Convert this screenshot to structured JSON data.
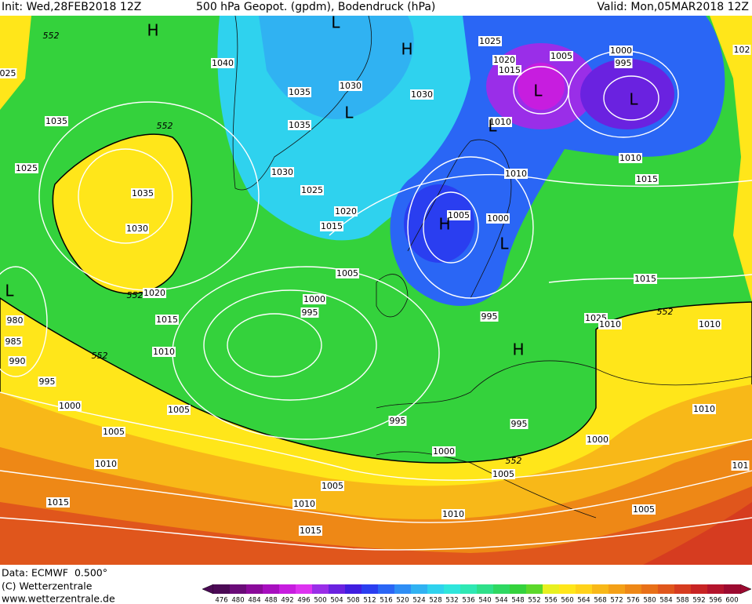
{
  "header": {
    "init": "Init: Wed,28FEB2018 12Z",
    "title": "500 hPa Geopot. (gpdm), Bodendruck (hPa)",
    "valid": "Valid: Mon,05MAR2018 12Z"
  },
  "pressure_labels": [
    "1040",
    "025",
    "1035",
    "1025",
    "1035",
    "1030",
    "1035",
    "1030",
    "1025",
    "1020",
    "1015",
    "1005",
    "1000",
    "995",
    "1010",
    "1030",
    "1025",
    "1035",
    "1030",
    "1020",
    "1015",
    "1010",
    "1015",
    "1010",
    "1005",
    "1000",
    "1005",
    "1015",
    "1020",
    "1000",
    "995",
    "1015",
    "980",
    "995",
    "1025",
    "1010",
    "1010",
    "985",
    "1010",
    "990",
    "995",
    "1000",
    "1005",
    "1010",
    "995",
    "995",
    "1005",
    "1000",
    "1000",
    "1010",
    "1005",
    "1005",
    "1015",
    "1010",
    "1010",
    "1005",
    "1015",
    "101",
    "102"
  ],
  "geopotential_labels": [
    "552",
    "552",
    "552",
    "552",
    "552",
    "552"
  ],
  "centers": [
    "H",
    "L",
    "H",
    "L",
    "L",
    "L",
    "L",
    "H",
    "L",
    "L",
    "H"
  ],
  "footer": {
    "data": "Data: ECMWF  0.500°",
    "copyright": "(C) Wetterzentrale",
    "url": "www.wetterzentrale.de"
  },
  "colorbar": {
    "labels": [
      "476",
      "480",
      "484",
      "488",
      "492",
      "496",
      "500",
      "504",
      "508",
      "512",
      "516",
      "520",
      "524",
      "528",
      "532",
      "536",
      "540",
      "544",
      "548",
      "552",
      "556",
      "560",
      "564",
      "568",
      "572",
      "576",
      "580",
      "584",
      "588",
      "592",
      "596",
      "600"
    ],
    "colors": [
      "#4b0a55",
      "#6a0b78",
      "#8a0a9a",
      "#a70fbf",
      "#c71ddf",
      "#dd33f0",
      "#9a2ee8",
      "#6a22e0",
      "#3f1ee0",
      "#2a3ef0",
      "#2a66f5",
      "#2e8ef5",
      "#30b2f2",
      "#2fd2ee",
      "#2ee6dc",
      "#2ee8b4",
      "#2ee08a",
      "#2ed862",
      "#34d23c",
      "#5cd82a",
      "#e8f020",
      "#ffe61a",
      "#ffd21a",
      "#f8b818",
      "#f4a016",
      "#ee8816",
      "#e87018",
      "#e0561c",
      "#d63c20",
      "#c82424",
      "#b4142c",
      "#9c0a30"
    ]
  }
}
